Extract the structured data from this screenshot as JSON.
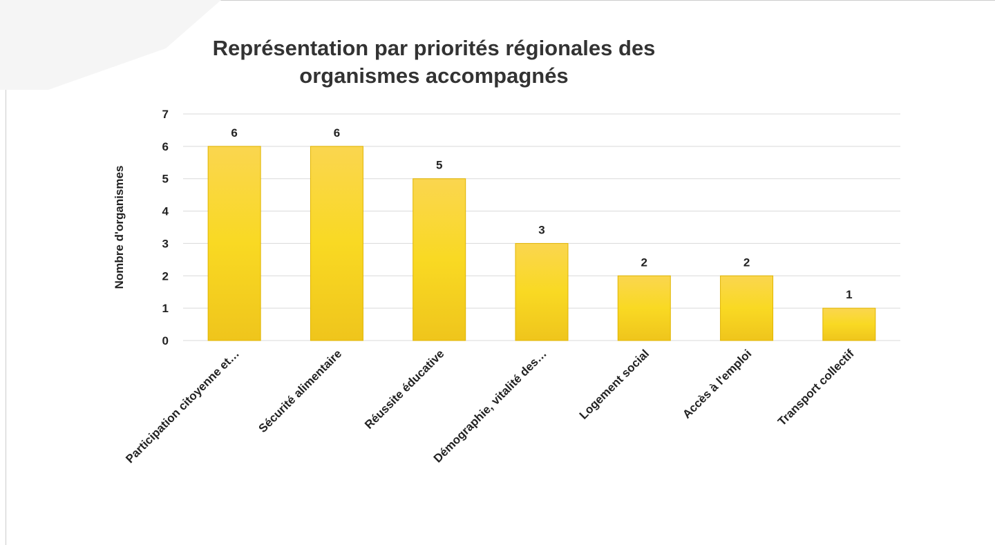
{
  "chart_data": {
    "type": "bar",
    "title": "Représentation par priorités régionales des organismes accompagnés",
    "y_label": "Nombre d'organismes",
    "categories": [
      "Participation citoyenne et…",
      "Sécurité alimentaire",
      "Réussite éducative",
      "Démographie, vitalité des…",
      "Logement social",
      "Accès à l'emploi",
      "Transport collectif"
    ],
    "values": [
      6,
      6,
      5,
      3,
      2,
      2,
      1
    ],
    "color": "#f9d923",
    "ylim": [
      0,
      7
    ],
    "yticks": [
      0,
      1,
      2,
      3,
      4,
      5,
      6,
      7
    ],
    "grid": true
  }
}
